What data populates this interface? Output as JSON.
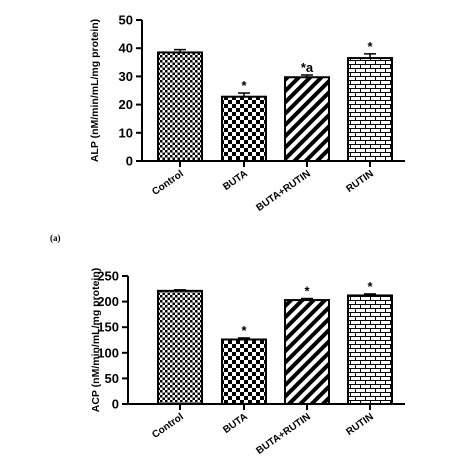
{
  "panel_label_a": "(a)",
  "chart_data": [
    {
      "type": "bar",
      "categories": [
        "Control",
        "BUTA",
        "BUTA+RUTIN",
        "RUTIN"
      ],
      "values": [
        38.5,
        22.8,
        29.7,
        36.5
      ],
      "errors": [
        1.0,
        1.3,
        0.8,
        1.5
      ],
      "annotations": [
        "",
        "*",
        "*a",
        "*"
      ],
      "patterns": [
        "checker-small",
        "checker-large",
        "diagonal",
        "brick"
      ],
      "ylabel": "ALP (nM/min/mL/mg protein)",
      "xlabel": "",
      "ylim": [
        0,
        50
      ],
      "yticks": [
        0,
        10,
        20,
        30,
        40,
        50
      ]
    },
    {
      "type": "bar",
      "categories": [
        "Control",
        "BUTA",
        "BUTA+RUTIN",
        "RUTIN"
      ],
      "values": [
        221,
        126,
        203,
        212
      ],
      "errors": [
        2,
        3,
        3,
        3
      ],
      "annotations": [
        "",
        "*",
        "*",
        "*"
      ],
      "patterns": [
        "checker-small",
        "checker-large",
        "diagonal",
        "brick"
      ],
      "ylabel": "ACP (nM/min/mL/mg protein)",
      "xlabel": "",
      "ylim": [
        0,
        250
      ],
      "yticks": [
        0,
        50,
        100,
        150,
        200,
        250
      ]
    }
  ]
}
